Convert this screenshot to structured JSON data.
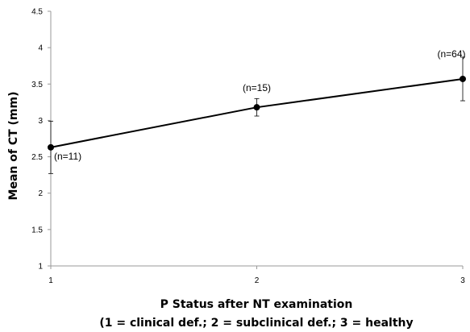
{
  "chart_data": {
    "type": "line",
    "xlabel": "P Status after NT examination",
    "xlabel2": "(1 = clinical def.; 2 = subclinical def.; 3 = healthy",
    "ylabel": "Mean of CT (mm)",
    "ylim": [
      1,
      4.5
    ],
    "xlim": [
      1,
      3
    ],
    "yticks": [
      "1",
      "1.5",
      "2",
      "2.5",
      "3",
      "3.5",
      "4",
      "4.5"
    ],
    "xticks": [
      "1",
      "2",
      "3"
    ],
    "grid": false,
    "series": [
      {
        "x": [
          1,
          2,
          3
        ],
        "values": [
          2.63,
          3.18,
          3.57
        ],
        "error_low": [
          2.27,
          3.06,
          3.27
        ],
        "error_high": [
          2.99,
          3.3,
          3.87
        ],
        "labels": [
          "(n=11)",
          "(n=15)",
          "(n=64)"
        ]
      }
    ]
  }
}
